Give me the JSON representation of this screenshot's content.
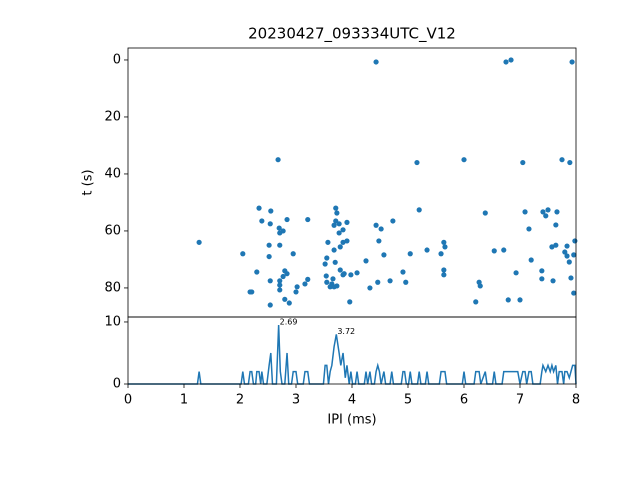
{
  "chart_data": [
    {
      "type": "scatter",
      "title": "20230427_093334UTC_V12",
      "ylabel": "t (s)",
      "color": "#1f77b4",
      "xlim": [
        0,
        8
      ],
      "ylim": [
        90.2,
        -4.2
      ],
      "yticks": [
        0,
        20,
        40,
        60,
        80
      ],
      "x": [
        4.43,
        6.75,
        6.84,
        7.93,
        2.68,
        5.16,
        6.0,
        7.05,
        7.75,
        7.89,
        1.27,
        2.34,
        2.39,
        2.55,
        2.54,
        2.7,
        2.71,
        2.84,
        2.77,
        2.52,
        2.71,
        2.95,
        2.52,
        2.05,
        2.3,
        2.8,
        2.84,
        2.77,
        2.54,
        2.71,
        2.71,
        2.71,
        2.21,
        2.18,
        3.02,
        3.0,
        2.54,
        2.8,
        2.88,
        3.21,
        3.21,
        3.16,
        3.55,
        3.52,
        3.54,
        3.55,
        3.57,
        3.68,
        3.71,
        3.73,
        3.71,
        3.77,
        3.68,
        3.77,
        3.84,
        3.84,
        3.79,
        3.91,
        3.91,
        3.7,
        3.79,
        3.84,
        3.66,
        3.64,
        3.73,
        3.61,
        3.68,
        3.86,
        3.98,
        3.96,
        4.09,
        4.25,
        4.32,
        4.43,
        4.52,
        4.48,
        4.46,
        4.57,
        4.73,
        4.68,
        4.91,
        4.96,
        5.04,
        5.2,
        5.34,
        5.59,
        5.64,
        5.66,
        5.64,
        5.64,
        6.21,
        6.27,
        6.29,
        6.38,
        6.54,
        6.71,
        6.79,
        6.93,
        7.0,
        7.09,
        7.16,
        7.2,
        7.39,
        7.39,
        7.41,
        7.46,
        7.5,
        7.57,
        7.64,
        7.66,
        7.59,
        7.64,
        7.8,
        7.84,
        7.88,
        7.91,
        7.96,
        7.98,
        7.84,
        7.96
      ],
      "y": [
        0.7,
        0.7,
        0,
        0.7,
        35,
        36,
        35,
        36,
        35,
        36,
        64,
        52,
        56.5,
        53,
        57.5,
        59,
        60.7,
        56,
        60,
        65,
        65,
        68,
        69,
        68,
        74.4,
        74,
        75,
        76,
        77.5,
        77.5,
        79,
        80.7,
        81.4,
        81.4,
        79.6,
        81.4,
        86,
        84,
        85.3,
        56,
        77,
        78.6,
        69.5,
        71.6,
        75.8,
        78,
        64,
        66.7,
        52,
        53.7,
        56.5,
        57.5,
        58,
        60.7,
        59.6,
        64,
        65.6,
        57,
        63.5,
        71,
        73.7,
        75.4,
        76.8,
        78.6,
        79.3,
        79.6,
        79.6,
        75,
        75.4,
        84.9,
        74.7,
        70.5,
        80,
        58,
        59.3,
        63.5,
        78,
        68.4,
        56.5,
        77.5,
        74.4,
        78,
        68,
        52.6,
        66.7,
        68,
        64,
        65.6,
        73.7,
        75.4,
        84.9,
        78,
        79.3,
        53.7,
        67,
        66.7,
        84.2,
        74.7,
        84.2,
        53.3,
        59.3,
        70.2,
        74,
        76.8,
        53.3,
        54.7,
        52.6,
        65.6,
        65,
        53.3,
        77.5,
        57.9,
        67.4,
        65.3,
        70.9,
        76.5,
        81.8,
        63.5,
        68.8,
        68.4
      ]
    },
    {
      "type": "line",
      "xlabel": "IPI (ms)",
      "color": "#1f77b4",
      "xlim": [
        0,
        8
      ],
      "ylim": [
        0,
        10.8
      ],
      "xticks": [
        0,
        1,
        2,
        3,
        4,
        5,
        6,
        7,
        8
      ],
      "yticks": [
        0,
        10
      ],
      "annotations": [
        {
          "text": "2.69",
          "x": 2.69,
          "y": 9.5
        },
        {
          "text": "3.72",
          "x": 3.72,
          "y": 8
        }
      ],
      "x": [
        0,
        1.24,
        1.27,
        1.3,
        2.02,
        2.05,
        2.08,
        2.15,
        2.18,
        2.21,
        2.24,
        2.28,
        2.3,
        2.34,
        2.37,
        2.39,
        2.42,
        2.48,
        2.52,
        2.55,
        2.58,
        2.65,
        2.69,
        2.72,
        2.75,
        2.8,
        2.84,
        2.87,
        2.92,
        2.95,
        3.0,
        3.03,
        3.13,
        3.16,
        3.21,
        3.24,
        3.49,
        3.52,
        3.55,
        3.58,
        3.61,
        3.64,
        3.68,
        3.72,
        3.77,
        3.8,
        3.84,
        3.88,
        3.91,
        3.95,
        3.98,
        4.01,
        4.06,
        4.09,
        4.12,
        4.22,
        4.25,
        4.28,
        4.32,
        4.35,
        4.4,
        4.43,
        4.46,
        4.49,
        4.52,
        4.57,
        4.6,
        4.68,
        4.71,
        4.74,
        4.88,
        4.91,
        4.94,
        4.97,
        5.01,
        5.04,
        5.07,
        5.17,
        5.2,
        5.23,
        5.31,
        5.34,
        5.37,
        5.56,
        5.59,
        5.62,
        5.66,
        5.69,
        5.97,
        6.0,
        6.03,
        6.18,
        6.21,
        6.24,
        6.27,
        6.3,
        6.38,
        6.41,
        6.51,
        6.54,
        6.57,
        6.68,
        6.71,
        6.75,
        6.79,
        6.84,
        6.88,
        6.93,
        6.96,
        7.0,
        7.05,
        7.09,
        7.12,
        7.16,
        7.2,
        7.23,
        7.36,
        7.39,
        7.41,
        7.46,
        7.5,
        7.54,
        7.57,
        7.6,
        7.64,
        7.67,
        7.7,
        7.75,
        7.78,
        7.8,
        7.84,
        7.88,
        7.91,
        7.94,
        7.98,
        8.0
      ],
      "values": [
        0,
        0,
        2,
        0,
        0,
        2,
        0,
        0,
        2,
        2,
        0,
        0,
        2,
        2,
        0,
        2,
        0,
        0,
        3,
        5,
        0,
        0,
        9.5,
        2,
        0,
        0,
        5,
        0,
        0,
        2,
        2,
        0,
        0,
        2,
        2,
        0,
        0,
        3,
        3,
        0,
        2,
        3,
        6,
        8,
        5,
        3,
        5,
        1,
        3,
        0,
        2,
        0,
        0,
        2,
        0,
        0,
        2,
        0,
        2,
        0,
        0,
        2,
        3,
        2,
        0,
        2,
        0,
        0,
        2,
        0,
        0,
        2,
        2,
        0,
        0,
        2,
        0,
        0,
        2,
        0,
        0,
        2,
        0,
        0,
        2,
        2,
        2,
        0,
        0,
        2,
        0,
        0,
        2,
        2,
        2,
        0,
        2,
        0,
        0,
        2,
        0,
        0,
        2,
        2,
        2,
        2,
        2,
        2,
        2,
        0,
        2,
        2,
        0,
        2,
        2,
        0,
        0,
        2,
        3,
        2,
        3,
        2,
        3,
        2,
        3,
        0,
        2,
        2,
        0,
        2,
        2,
        1,
        2,
        3,
        3,
        0
      ]
    }
  ]
}
